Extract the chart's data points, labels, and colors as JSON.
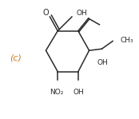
{
  "bg_color": "#ffffff",
  "text_color": "#2a2a2a",
  "label_color": "#cc7722",
  "ring_color": "#2a2a2a",
  "label_c": "(c)",
  "O_label": "O",
  "OH_label": "OH",
  "CH3_label": "CH₃",
  "NO2_label": "NO₂",
  "ring_lw": 1.1,
  "font_size": 6.5
}
